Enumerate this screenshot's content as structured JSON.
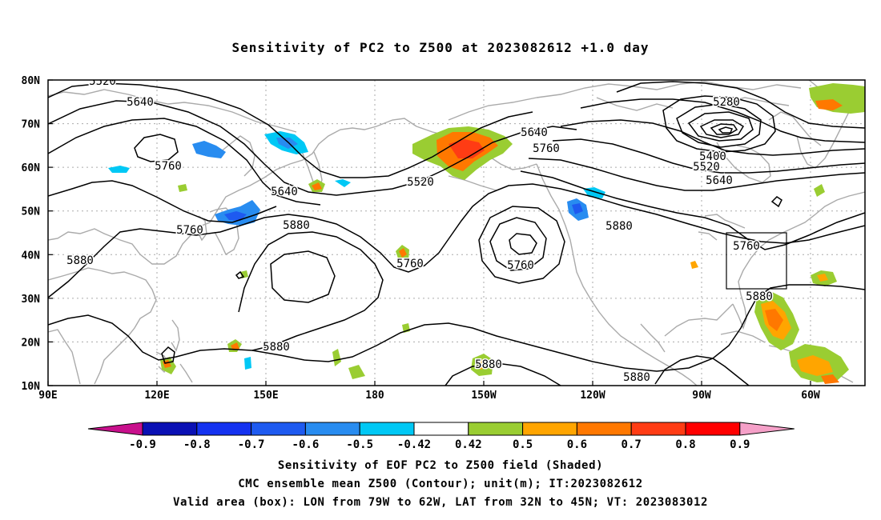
{
  "title": "Sensitivity of PC2 to Z500 at 2023082612 +1.0 day",
  "lat_labels": [
    "80N",
    "70N",
    "60N",
    "50N",
    "40N",
    "30N",
    "20N",
    "10N"
  ],
  "lon_labels": [
    "90E",
    "120E",
    "150E",
    "180",
    "150W",
    "120W",
    "90W",
    "60W"
  ],
  "contour_labels": [
    "5520",
    "5640",
    "5760",
    "5640",
    "5760",
    "5880",
    "5880",
    "5520",
    "5640",
    "5760",
    "5760",
    "5760",
    "5880",
    "5280",
    "5400",
    "5520",
    "5640",
    "5760",
    "5880",
    "5880",
    "5880",
    "5880"
  ],
  "colorbar": {
    "ticks": [
      "-0.9",
      "-0.8",
      "-0.7",
      "-0.6",
      "-0.5",
      "-0.42",
      "0.42",
      "0.5",
      "0.6",
      "0.7",
      "0.8",
      "0.9"
    ],
    "colors": [
      "#c8108c",
      "#0a10b4",
      "#1432f0",
      "#1e5af0",
      "#288cf0",
      "#00c8f5",
      "#ffffff",
      "#9acd32",
      "#ffa500",
      "#ff7800",
      "#ff3c14",
      "#ff0000",
      "#f5a0c8"
    ]
  },
  "footer": {
    "line1": "Sensitivity of EOF PC2 to Z500 field (Shaded)",
    "line2": "CMC ensemble mean Z500 (Contour); unit(m); IT:2023082612",
    "line3": "Valid area (box): LON from 79W to 62W, LAT from 32N to 45N; VT: 2023083012"
  }
}
